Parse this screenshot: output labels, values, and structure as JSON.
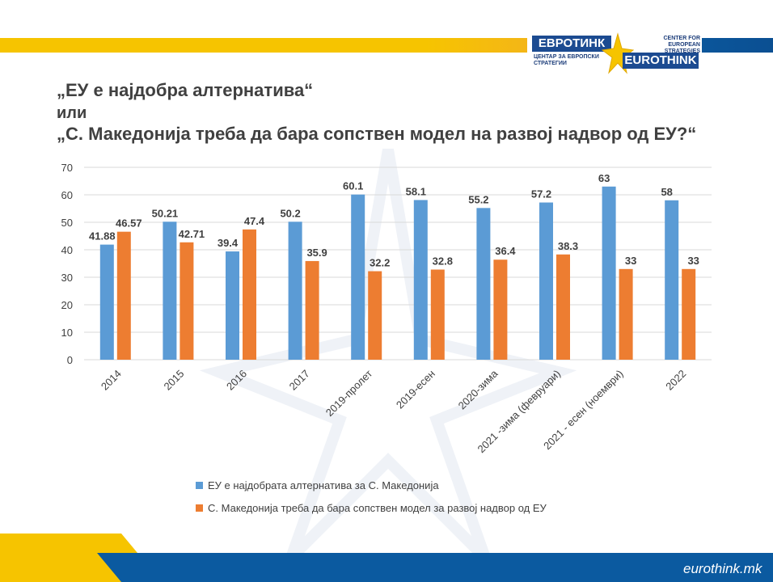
{
  "logo": {
    "brand_mk": "ЕВРОТИНК",
    "brand_en": "EUROTHINK",
    "sub_mk": "ЦЕНТАР ЗА ЕВРОПСКИ СТРАТЕГИИ",
    "sub_en": "CENTER FOR EUROPEAN STRATEGIES"
  },
  "title": {
    "line1": "„ЕУ е најдобра алтернатива“",
    "line2": "или",
    "line3": "„С. Македонија треба да бара сопствен модел на развој надвор од ЕУ?“"
  },
  "footer": {
    "brand": "eurothink.mk"
  },
  "colors": {
    "series1": "#5b9bd5",
    "series2": "#ed7d31",
    "grid": "#d9d9d9",
    "text": "#404040",
    "yellow": "#f6c400",
    "blue": "#0b5aa0"
  },
  "chart_data": {
    "type": "bar",
    "categories": [
      "2014",
      "2015",
      "2016",
      "2017",
      "2019-пролет",
      "2019-есен",
      "2020-зима",
      "2021 -зима (февруари)",
      "2021 - есен (ноември)",
      "2022"
    ],
    "series": [
      {
        "name": "ЕУ е најдобрата алтернатива за С. Македонија",
        "values": [
          41.88,
          50.21,
          39.4,
          50.2,
          60.1,
          58.1,
          55.2,
          57.2,
          63,
          58
        ],
        "labels": [
          "41.88",
          "50.21",
          "39.4",
          "50.2",
          "60.1",
          "58.1",
          "55.2",
          "57.2",
          "63",
          "58"
        ]
      },
      {
        "name": "С. Македонија треба да бара сопствен модел за развој надвор од ЕУ",
        "values": [
          46.57,
          42.71,
          47.4,
          35.9,
          32.2,
          32.8,
          36.4,
          38.3,
          33,
          33
        ],
        "labels": [
          "46.57",
          "42.71",
          "47.4",
          "35.9",
          "32.2",
          "32.8",
          "36.4",
          "38.3",
          "33",
          "33"
        ]
      }
    ],
    "yticks": [
      "0",
      "10",
      "20",
      "30",
      "40",
      "50",
      "60",
      "70"
    ],
    "ylim": [
      0,
      70
    ],
    "grid": true,
    "legend": "bottom"
  }
}
